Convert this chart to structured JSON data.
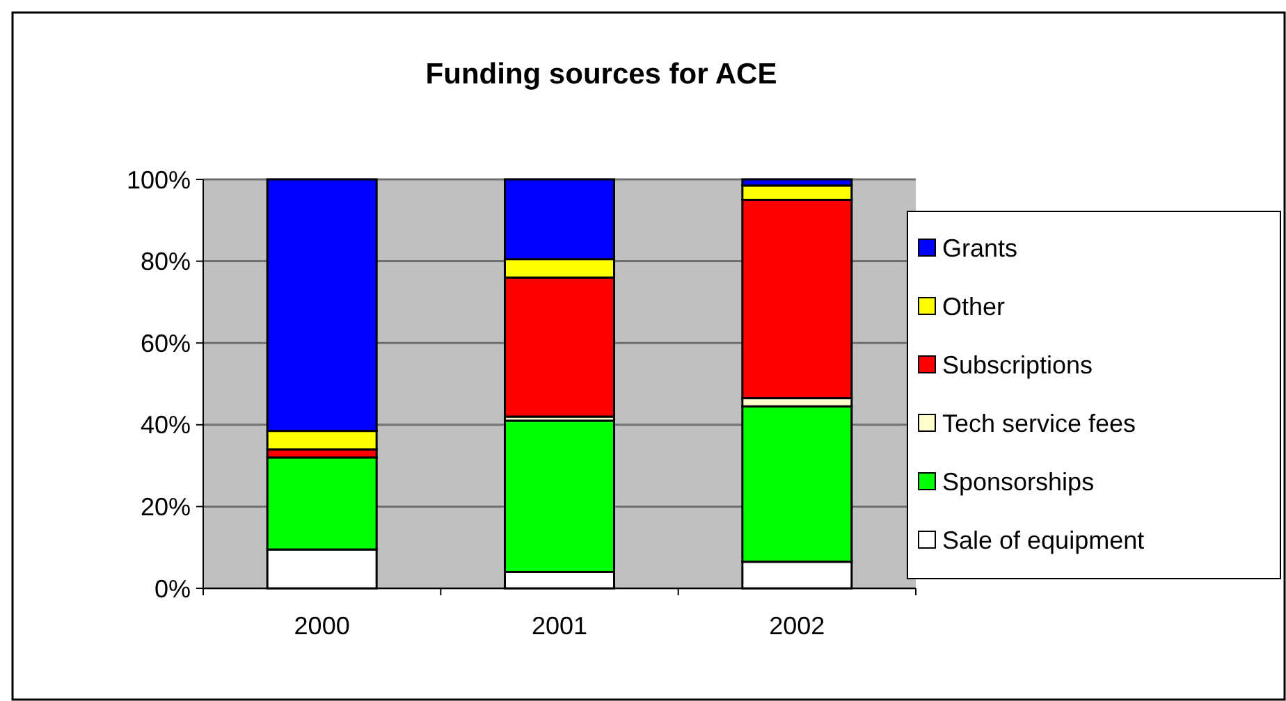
{
  "chart_data": {
    "type": "bar",
    "title": "Funding sources for ACE",
    "categories": [
      "2000",
      "2001",
      "2002"
    ],
    "stacked": true,
    "series": [
      {
        "name": "Sale of equipment",
        "color": "#ffffff",
        "values": [
          9.5,
          4,
          6.5
        ]
      },
      {
        "name": "Sponsorships",
        "color": "#00ff00",
        "values": [
          22.5,
          37,
          38
        ]
      },
      {
        "name": "Tech service fees",
        "color": "#ffffcc",
        "values": [
          0,
          1,
          2
        ]
      },
      {
        "name": "Subscriptions",
        "color": "#ff0000",
        "values": [
          2,
          34,
          48.5
        ]
      },
      {
        "name": "Other",
        "color": "#ffff00",
        "values": [
          4.5,
          4.5,
          3.5
        ]
      },
      {
        "name": "Grants",
        "color": "#0000ff",
        "values": [
          61.5,
          19.5,
          1.5
        ]
      }
    ],
    "ylim": [
      0,
      100
    ],
    "yticks": [
      {
        "value": 0,
        "label": "0%"
      },
      {
        "value": 20,
        "label": "20%"
      },
      {
        "value": 40,
        "label": "40%"
      },
      {
        "value": 60,
        "label": "60%"
      },
      {
        "value": 80,
        "label": "80%"
      },
      {
        "value": 100,
        "label": "100%"
      }
    ],
    "grid": "y",
    "legend": "right"
  }
}
